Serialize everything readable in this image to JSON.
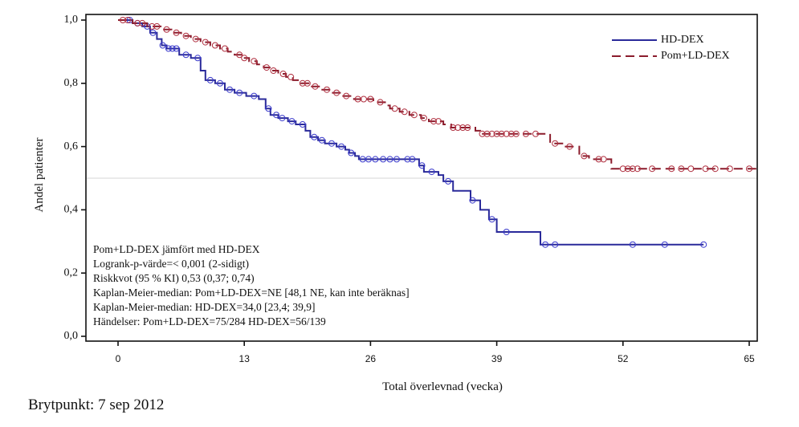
{
  "chart_data": {
    "type": "line",
    "subtype": "kaplan-meier-step",
    "title": "",
    "xlabel": "Total överlevnad (vecka)",
    "ylabel": "Andel patienter",
    "xlim": [
      -3.3,
      66
    ],
    "ylim": [
      0,
      1.0
    ],
    "xticks": [
      0,
      13,
      26,
      39,
      52,
      65
    ],
    "xtick_labels": [
      "0",
      "13",
      "26",
      "39",
      "52",
      "65"
    ],
    "yticks": [
      0,
      0.2,
      0.4,
      0.6,
      0.8,
      1.0
    ],
    "ytick_labels": [
      "0,0",
      "0,2",
      "0,4",
      "0,6",
      "0,8",
      "1,0"
    ],
    "grid": false,
    "reference_line_y": 0.5,
    "legend_position": "top-right",
    "series": [
      {
        "name": "HD-DEX",
        "color": "#2a2a9a",
        "marker_color": "#3b3bcc",
        "dash": "solid",
        "steps": [
          [
            0,
            1.0
          ],
          [
            1.5,
            0.99
          ],
          [
            2.5,
            0.98
          ],
          [
            3.3,
            0.96
          ],
          [
            4.0,
            0.94
          ],
          [
            4.5,
            0.92
          ],
          [
            5.0,
            0.91
          ],
          [
            6.3,
            0.89
          ],
          [
            7.5,
            0.88
          ],
          [
            8.5,
            0.84
          ],
          [
            9.0,
            0.81
          ],
          [
            10.0,
            0.8
          ],
          [
            11.0,
            0.78
          ],
          [
            12.0,
            0.77
          ],
          [
            13.2,
            0.76
          ],
          [
            14.5,
            0.75
          ],
          [
            15.2,
            0.72
          ],
          [
            15.7,
            0.7
          ],
          [
            16.5,
            0.69
          ],
          [
            17.5,
            0.68
          ],
          [
            18.3,
            0.67
          ],
          [
            19.3,
            0.65
          ],
          [
            19.8,
            0.63
          ],
          [
            20.6,
            0.62
          ],
          [
            21.3,
            0.61
          ],
          [
            22.5,
            0.6
          ],
          [
            23.4,
            0.59
          ],
          [
            23.8,
            0.58
          ],
          [
            24.4,
            0.57
          ],
          [
            24.8,
            0.56
          ],
          [
            31.0,
            0.54
          ],
          [
            31.5,
            0.52
          ],
          [
            33.0,
            0.51
          ],
          [
            33.5,
            0.49
          ],
          [
            34.5,
            0.46
          ],
          [
            36.3,
            0.43
          ],
          [
            37.3,
            0.4
          ],
          [
            38.2,
            0.37
          ],
          [
            39.0,
            0.33
          ],
          [
            43.5,
            0.29
          ],
          [
            60.3,
            0.29
          ]
        ],
        "censor_weeks": [
          1.2,
          2.0,
          3.0,
          3.6,
          4.6,
          5.2,
          5.6,
          6.0,
          7.0,
          8.2,
          9.5,
          10.5,
          11.5,
          12.5,
          14.0,
          15.5,
          16.3,
          16.9,
          17.9,
          19.0,
          20.2,
          21.0,
          22.0,
          23.0,
          24.0,
          25.2,
          25.8,
          26.5,
          27.3,
          28.0,
          28.7,
          29.8,
          30.3,
          31.3,
          32.3,
          34.0,
          36.5,
          38.5,
          40.0,
          44.0,
          45.0,
          53.0,
          56.3,
          60.3
        ]
      },
      {
        "name": "Pom+LD-DEX",
        "color": "#8b1c2c",
        "marker_color": "#b03040",
        "dash": "dashed",
        "steps": [
          [
            0,
            1.0
          ],
          [
            1.5,
            0.99
          ],
          [
            3.0,
            0.98
          ],
          [
            4.5,
            0.97
          ],
          [
            5.5,
            0.96
          ],
          [
            6.5,
            0.95
          ],
          [
            7.5,
            0.94
          ],
          [
            8.5,
            0.93
          ],
          [
            9.5,
            0.92
          ],
          [
            10.5,
            0.91
          ],
          [
            11.3,
            0.9
          ],
          [
            12.0,
            0.89
          ],
          [
            12.8,
            0.88
          ],
          [
            13.5,
            0.87
          ],
          [
            14.3,
            0.86
          ],
          [
            15.0,
            0.85
          ],
          [
            15.8,
            0.84
          ],
          [
            16.5,
            0.83
          ],
          [
            17.3,
            0.82
          ],
          [
            18.0,
            0.81
          ],
          [
            18.8,
            0.8
          ],
          [
            19.8,
            0.79
          ],
          [
            20.8,
            0.78
          ],
          [
            22.0,
            0.77
          ],
          [
            23.0,
            0.76
          ],
          [
            24.3,
            0.75
          ],
          [
            26.3,
            0.74
          ],
          [
            27.5,
            0.73
          ],
          [
            28.0,
            0.72
          ],
          [
            29.0,
            0.71
          ],
          [
            30.0,
            0.7
          ],
          [
            31.2,
            0.69
          ],
          [
            32.0,
            0.68
          ],
          [
            33.5,
            0.67
          ],
          [
            34.3,
            0.66
          ],
          [
            36.8,
            0.65
          ],
          [
            37.3,
            0.64
          ],
          [
            44.5,
            0.61
          ],
          [
            46.0,
            0.6
          ],
          [
            47.5,
            0.57
          ],
          [
            48.5,
            0.56
          ],
          [
            50.8,
            0.53
          ],
          [
            66.0,
            0.53
          ]
        ],
        "censor_weeks": [
          0.5,
          1.0,
          2.0,
          2.5,
          3.5,
          4.0,
          5.0,
          6.0,
          7.0,
          8.0,
          9.0,
          10.0,
          11.0,
          12.5,
          13.0,
          14.0,
          15.3,
          16.0,
          17.0,
          17.8,
          19.0,
          19.5,
          20.3,
          21.5,
          22.5,
          23.5,
          24.7,
          25.3,
          26.0,
          27.0,
          28.5,
          29.5,
          30.5,
          31.5,
          32.5,
          33.0,
          34.5,
          35.0,
          35.5,
          36.0,
          37.5,
          38.0,
          38.5,
          39.0,
          39.5,
          40.0,
          40.5,
          41.0,
          42.0,
          43.0,
          45.0,
          46.5,
          48.0,
          49.5,
          50.0,
          52.0,
          52.5,
          53.0,
          53.5,
          55.0,
          57.0,
          58.0,
          59.0,
          60.5,
          61.5,
          63.0,
          65.0
        ]
      }
    ],
    "annotations": [
      "Pom+LD-DEX jämfört med HD-DEX",
      "Logrank-p-värde=< 0,001 (2-sidigt)",
      "Riskkvot (95 % KI) 0,53 (0,37; 0,74)",
      "Kaplan-Meier-median: Pom+LD-DEX=NE [48,1 NE, kan inte beräknas]",
      "Kaplan-Meier-median: HD-DEX=34,0 [23,4; 39,9]",
      "Händelser: Pom+LD-DEX=75/284 HD-DEX=56/139"
    ]
  },
  "footnote": "Brytpunkt: 7 sep 2012"
}
